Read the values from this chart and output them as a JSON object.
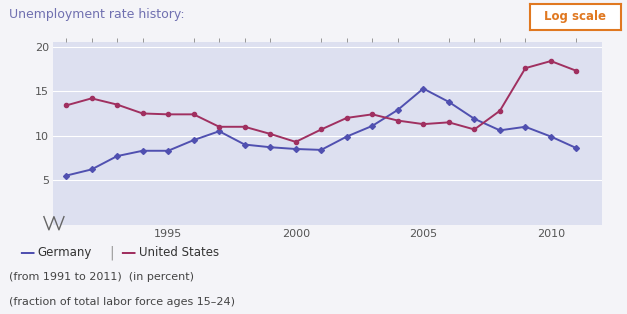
{
  "title": "Unemployment rate history:",
  "subtitle1": "(from 1991 to 2011)  (in percent)",
  "subtitle2": "(fraction of total labor force ages 15–24)",
  "log_scale_label": "Log scale",
  "years": [
    1991,
    1992,
    1993,
    1994,
    1995,
    1996,
    1997,
    1998,
    1999,
    2000,
    2001,
    2002,
    2003,
    2004,
    2005,
    2006,
    2007,
    2008,
    2009,
    2010,
    2011
  ],
  "germany": [
    5.5,
    6.2,
    7.7,
    8.3,
    8.3,
    9.5,
    10.5,
    9.0,
    8.7,
    8.5,
    8.4,
    9.9,
    11.1,
    12.9,
    15.3,
    13.8,
    11.9,
    10.6,
    11.0,
    9.9,
    8.6
  ],
  "us": [
    13.4,
    14.2,
    13.5,
    12.5,
    12.4,
    12.4,
    11.0,
    11.0,
    10.2,
    9.3,
    10.7,
    12.0,
    12.4,
    11.7,
    11.3,
    11.5,
    10.7,
    12.8,
    17.6,
    18.4,
    17.3
  ],
  "germany_color": "#5050b0",
  "us_color": "#a03060",
  "bg_color": "#dde0f0",
  "outer_bg": "#f4f4f8",
  "grid_color": "#ffffff",
  "title_color": "#7070b0",
  "log_button_fg": "#e07820",
  "log_button_bg": "#ffffff",
  "log_button_border": "#e07820",
  "yticks": [
    5,
    10,
    15,
    20
  ],
  "xticks": [
    1995,
    2000,
    2005,
    2010
  ],
  "xlim": [
    1990.5,
    2012.0
  ],
  "ylim": [
    0,
    20.5
  ]
}
